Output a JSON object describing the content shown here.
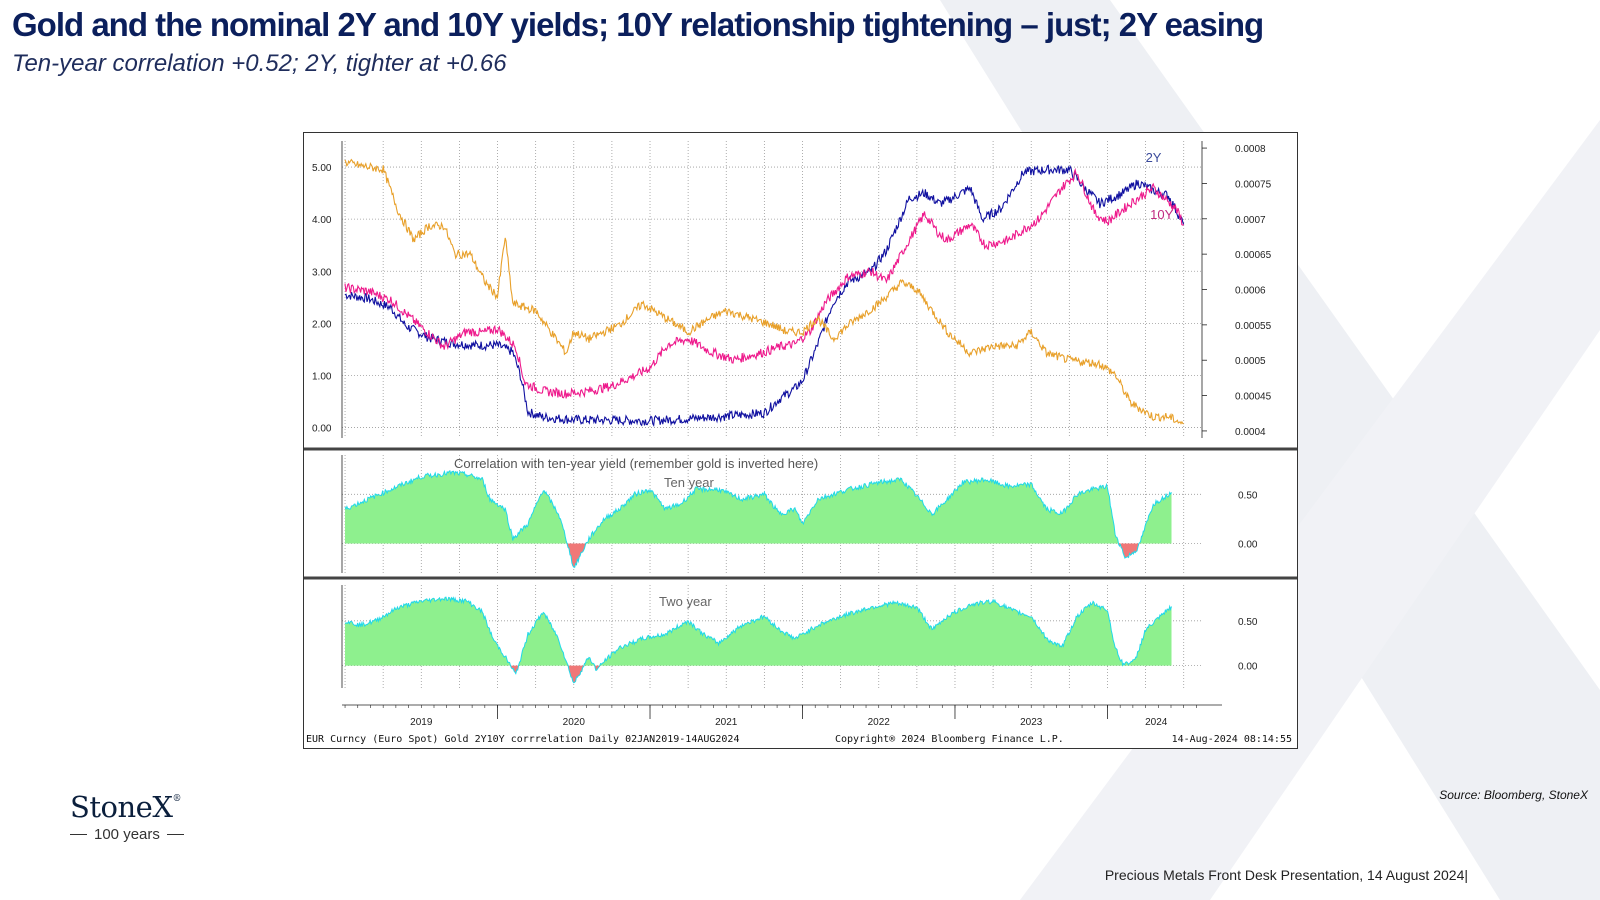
{
  "page": {
    "title": "Gold and the nominal 2Y and 10Y yields; 10Y relationship tightening – just; 2Y easing",
    "subtitle": "Ten-year correlation +0.52; 2Y, tighter at +0.66",
    "source": "Source: Bloomberg, StoneX",
    "footer": "Precious Metals Front Desk Presentation, 14 August 2024|",
    "logo": {
      "name": "StoneX",
      "mark": "®",
      "tagline": "100 years"
    }
  },
  "colors": {
    "gold": "#e8a02a",
    "ten_year": "#ee1a8c",
    "two_year": "#1010a0",
    "corr_fill": "#8ef08e",
    "corr_line": "#20d8e8",
    "corr_negative": "#f07878",
    "title": "#0b1f5c"
  },
  "chart_data": [
    {
      "type": "line",
      "left_axis_ticks": [
        "5.00",
        "4.00",
        "3.00",
        "2.00",
        "1.00",
        "0.00"
      ],
      "right_axis_ticks": [
        "0.0008",
        "0.00075",
        "0.0007",
        "0.00065",
        "0.0006",
        "0.00055",
        "0.0005",
        "0.00045",
        "0.0004"
      ],
      "ylim_left": [
        -0.2,
        5.5
      ],
      "ylim_right": [
        0.00039,
        0.00081
      ],
      "x_ticks": [
        "2019",
        "2020",
        "2021",
        "2022",
        "2023",
        "2024"
      ],
      "x_range": [
        2018.98,
        2024.62
      ],
      "grid": true,
      "series": [
        {
          "name": "2Y",
          "axis": "left",
          "color": "#1010a0",
          "points": [
            [
              2019.0,
              2.55
            ],
            [
              2019.15,
              2.48
            ],
            [
              2019.3,
              2.3
            ],
            [
              2019.4,
              1.95
            ],
            [
              2019.55,
              1.72
            ],
            [
              2019.7,
              1.62
            ],
            [
              2019.85,
              1.58
            ],
            [
              2020.0,
              1.58
            ],
            [
              2020.1,
              1.45
            ],
            [
              2020.15,
              1.0
            ],
            [
              2020.2,
              0.3
            ],
            [
              2020.3,
              0.2
            ],
            [
              2020.5,
              0.15
            ],
            [
              2020.8,
              0.14
            ],
            [
              2021.0,
              0.13
            ],
            [
              2021.3,
              0.18
            ],
            [
              2021.5,
              0.22
            ],
            [
              2021.75,
              0.28
            ],
            [
              2021.85,
              0.55
            ],
            [
              2021.95,
              0.75
            ],
            [
              2022.0,
              0.9
            ],
            [
              2022.1,
              1.6
            ],
            [
              2022.2,
              2.4
            ],
            [
              2022.3,
              2.8
            ],
            [
              2022.45,
              3.0
            ],
            [
              2022.55,
              3.4
            ],
            [
              2022.7,
              4.4
            ],
            [
              2022.8,
              4.5
            ],
            [
              2022.9,
              4.3
            ],
            [
              2022.95,
              4.35
            ],
            [
              2023.1,
              4.6
            ],
            [
              2023.18,
              4.0
            ],
            [
              2023.3,
              4.2
            ],
            [
              2023.45,
              4.9
            ],
            [
              2023.6,
              4.95
            ],
            [
              2023.75,
              4.95
            ],
            [
              2023.85,
              4.6
            ],
            [
              2023.95,
              4.3
            ],
            [
              2024.1,
              4.5
            ],
            [
              2024.2,
              4.7
            ],
            [
              2024.3,
              4.55
            ],
            [
              2024.4,
              4.45
            ],
            [
              2024.5,
              3.9
            ]
          ]
        },
        {
          "name": "10Y",
          "axis": "left",
          "color": "#ee1a8c",
          "points": [
            [
              2019.0,
              2.68
            ],
            [
              2019.15,
              2.62
            ],
            [
              2019.3,
              2.45
            ],
            [
              2019.45,
              2.05
            ],
            [
              2019.55,
              1.8
            ],
            [
              2019.65,
              1.55
            ],
            [
              2019.8,
              1.85
            ],
            [
              2019.9,
              1.82
            ],
            [
              2020.0,
              1.9
            ],
            [
              2020.12,
              1.55
            ],
            [
              2020.18,
              0.85
            ],
            [
              2020.3,
              0.7
            ],
            [
              2020.45,
              0.65
            ],
            [
              2020.6,
              0.7
            ],
            [
              2020.75,
              0.8
            ],
            [
              2020.9,
              1.0
            ],
            [
              2021.0,
              1.15
            ],
            [
              2021.12,
              1.6
            ],
            [
              2021.25,
              1.7
            ],
            [
              2021.4,
              1.45
            ],
            [
              2021.55,
              1.3
            ],
            [
              2021.75,
              1.45
            ],
            [
              2021.85,
              1.55
            ],
            [
              2021.95,
              1.6
            ],
            [
              2022.05,
              1.85
            ],
            [
              2022.15,
              2.4
            ],
            [
              2022.3,
              2.9
            ],
            [
              2022.45,
              3.0
            ],
            [
              2022.55,
              2.8
            ],
            [
              2022.7,
              3.6
            ],
            [
              2022.8,
              4.1
            ],
            [
              2022.9,
              3.7
            ],
            [
              2022.95,
              3.6
            ],
            [
              2023.1,
              3.9
            ],
            [
              2023.2,
              3.5
            ],
            [
              2023.35,
              3.6
            ],
            [
              2023.55,
              4.0
            ],
            [
              2023.7,
              4.6
            ],
            [
              2023.8,
              4.9
            ],
            [
              2023.92,
              4.1
            ],
            [
              2024.0,
              3.95
            ],
            [
              2024.15,
              4.3
            ],
            [
              2024.3,
              4.6
            ],
            [
              2024.45,
              4.2
            ],
            [
              2024.5,
              3.9
            ]
          ]
        },
        {
          "name": "Gold (EUR inverted)",
          "axis": "right",
          "color": "#e8a02a",
          "points": [
            [
              2019.0,
              0.00078
            ],
            [
              2019.1,
              0.000775
            ],
            [
              2019.25,
              0.00077
            ],
            [
              2019.35,
              0.00071
            ],
            [
              2019.45,
              0.00067
            ],
            [
              2019.55,
              0.00069
            ],
            [
              2019.65,
              0.00069
            ],
            [
              2019.72,
              0.00065
            ],
            [
              2019.82,
              0.00065
            ],
            [
              2019.92,
              0.00061
            ],
            [
              2020.0,
              0.00059
            ],
            [
              2020.05,
              0.000675
            ],
            [
              2020.1,
              0.00058
            ],
            [
              2020.25,
              0.00057
            ],
            [
              2020.35,
              0.00054
            ],
            [
              2020.45,
              0.00051
            ],
            [
              2020.5,
              0.00054
            ],
            [
              2020.6,
              0.00053
            ],
            [
              2020.7,
              0.00054
            ],
            [
              2020.8,
              0.00055
            ],
            [
              2020.95,
              0.00058
            ],
            [
              2021.1,
              0.00056
            ],
            [
              2021.25,
              0.00054
            ],
            [
              2021.4,
              0.00056
            ],
            [
              2021.5,
              0.00057
            ],
            [
              2021.65,
              0.00056
            ],
            [
              2021.8,
              0.00055
            ],
            [
              2021.9,
              0.00054
            ],
            [
              2022.0,
              0.00054
            ],
            [
              2022.1,
              0.00056
            ],
            [
              2022.2,
              0.00053
            ],
            [
              2022.3,
              0.00055
            ],
            [
              2022.5,
              0.00058
            ],
            [
              2022.65,
              0.00061
            ],
            [
              2022.75,
              0.0006
            ],
            [
              2022.85,
              0.00057
            ],
            [
              2022.95,
              0.00054
            ],
            [
              2023.1,
              0.00051
            ],
            [
              2023.25,
              0.00052
            ],
            [
              2023.4,
              0.00052
            ],
            [
              2023.5,
              0.00054
            ],
            [
              2023.6,
              0.00051
            ],
            [
              2023.75,
              0.0005
            ],
            [
              2023.95,
              0.000495
            ],
            [
              2024.05,
              0.00048
            ],
            [
              2024.15,
              0.00044
            ],
            [
              2024.3,
              0.00042
            ],
            [
              2024.4,
              0.00042
            ],
            [
              2024.5,
              0.00041
            ]
          ]
        }
      ],
      "annotations": [
        {
          "text": "2Y",
          "x": 2024.25,
          "y": 5.1
        },
        {
          "text": "10Y",
          "x": 2024.28,
          "y": 4.0
        }
      ]
    },
    {
      "type": "area",
      "title": "Correlation with ten-year yield (remember gold is inverted here)",
      "label": "Ten year",
      "right_axis_ticks": [
        "0.50",
        "0.00"
      ],
      "ylim": [
        -0.3,
        0.9
      ],
      "points": [
        [
          2019.0,
          0.35
        ],
        [
          2019.15,
          0.45
        ],
        [
          2019.3,
          0.55
        ],
        [
          2019.5,
          0.68
        ],
        [
          2019.7,
          0.72
        ],
        [
          2019.8,
          0.7
        ],
        [
          2019.9,
          0.65
        ],
        [
          2019.95,
          0.45
        ],
        [
          2020.05,
          0.35
        ],
        [
          2020.1,
          0.05
        ],
        [
          2020.2,
          0.2
        ],
        [
          2020.3,
          0.55
        ],
        [
          2020.4,
          0.3
        ],
        [
          2020.45,
          0.05
        ],
        [
          2020.5,
          -0.25
        ],
        [
          2020.6,
          0.05
        ],
        [
          2020.7,
          0.25
        ],
        [
          2020.8,
          0.35
        ],
        [
          2020.9,
          0.5
        ],
        [
          2021.0,
          0.55
        ],
        [
          2021.1,
          0.35
        ],
        [
          2021.2,
          0.4
        ],
        [
          2021.3,
          0.55
        ],
        [
          2021.45,
          0.55
        ],
        [
          2021.6,
          0.45
        ],
        [
          2021.75,
          0.5
        ],
        [
          2021.85,
          0.3
        ],
        [
          2021.95,
          0.35
        ],
        [
          2022.0,
          0.2
        ],
        [
          2022.1,
          0.45
        ],
        [
          2022.3,
          0.55
        ],
        [
          2022.5,
          0.62
        ],
        [
          2022.65,
          0.65
        ],
        [
          2022.75,
          0.48
        ],
        [
          2022.85,
          0.3
        ],
        [
          2022.95,
          0.45
        ],
        [
          2023.05,
          0.62
        ],
        [
          2023.2,
          0.65
        ],
        [
          2023.35,
          0.58
        ],
        [
          2023.5,
          0.6
        ],
        [
          2023.6,
          0.35
        ],
        [
          2023.7,
          0.3
        ],
        [
          2023.8,
          0.5
        ],
        [
          2023.9,
          0.55
        ],
        [
          2024.0,
          0.58
        ],
        [
          2024.05,
          0.1
        ],
        [
          2024.12,
          -0.15
        ],
        [
          2024.2,
          -0.05
        ],
        [
          2024.3,
          0.4
        ],
        [
          2024.42,
          0.52
        ]
      ]
    },
    {
      "type": "area",
      "label": "Two year",
      "right_axis_ticks": [
        "0.50",
        "0.00"
      ],
      "ylim": [
        -0.25,
        0.9
      ],
      "points": [
        [
          2019.0,
          0.5
        ],
        [
          2019.1,
          0.45
        ],
        [
          2019.2,
          0.5
        ],
        [
          2019.35,
          0.65
        ],
        [
          2019.5,
          0.72
        ],
        [
          2019.65,
          0.75
        ],
        [
          2019.8,
          0.72
        ],
        [
          2019.9,
          0.6
        ],
        [
          2019.97,
          0.3
        ],
        [
          2020.05,
          0.1
        ],
        [
          2020.12,
          -0.1
        ],
        [
          2020.2,
          0.35
        ],
        [
          2020.3,
          0.6
        ],
        [
          2020.4,
          0.3
        ],
        [
          2020.45,
          0.05
        ],
        [
          2020.5,
          -0.2
        ],
        [
          2020.6,
          0.1
        ],
        [
          2020.65,
          -0.05
        ],
        [
          2020.7,
          0.05
        ],
        [
          2020.8,
          0.2
        ],
        [
          2020.95,
          0.3
        ],
        [
          2021.1,
          0.35
        ],
        [
          2021.25,
          0.5
        ],
        [
          2021.35,
          0.35
        ],
        [
          2021.45,
          0.25
        ],
        [
          2021.6,
          0.45
        ],
        [
          2021.75,
          0.55
        ],
        [
          2021.85,
          0.4
        ],
        [
          2021.95,
          0.3
        ],
        [
          2022.1,
          0.45
        ],
        [
          2022.25,
          0.55
        ],
        [
          2022.45,
          0.65
        ],
        [
          2022.6,
          0.7
        ],
        [
          2022.75,
          0.65
        ],
        [
          2022.85,
          0.4
        ],
        [
          2022.95,
          0.55
        ],
        [
          2023.1,
          0.68
        ],
        [
          2023.25,
          0.72
        ],
        [
          2023.4,
          0.6
        ],
        [
          2023.5,
          0.55
        ],
        [
          2023.6,
          0.3
        ],
        [
          2023.7,
          0.2
        ],
        [
          2023.8,
          0.55
        ],
        [
          2023.9,
          0.7
        ],
        [
          2024.0,
          0.62
        ],
        [
          2024.05,
          0.2
        ],
        [
          2024.1,
          0.02
        ],
        [
          2024.18,
          0.05
        ],
        [
          2024.25,
          0.4
        ],
        [
          2024.35,
          0.55
        ],
        [
          2024.42,
          0.66
        ]
      ]
    }
  ],
  "chart_footer": {
    "left": "EUR Curncy (Euro Spot) Gold 2Y10Y corrrelation  Daily 02JAN2019-14AUG2024",
    "center": "Copyright® 2024 Bloomberg Finance L.P.",
    "right": "14-Aug-2024 08:14:55"
  }
}
